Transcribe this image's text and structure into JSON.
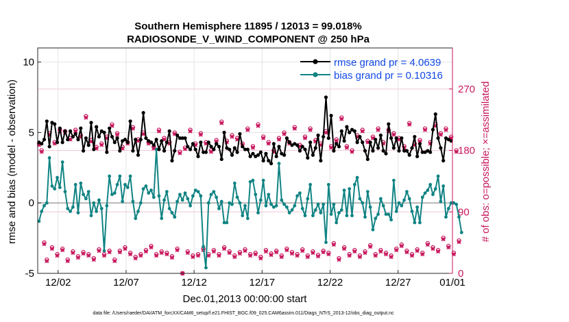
{
  "chart_data": {
    "type": "line",
    "title_line1": "Southern Hemisphere 11895 / 12013 = 99.018%",
    "title_line2": "RADIOSONDE_V_WIND_COMPONENT @ 250 hPa",
    "xlabel": "Dec.01,2013 00:00:00 start",
    "ylabel": "rmse and bias (model - observation)",
    "ylabel_right": "# of obs: o=possible; ×=assimilated",
    "xlim": [
      0.5,
      31
    ],
    "ylim": [
      -5,
      11
    ],
    "ylim_right": [
      0,
      330
    ],
    "x_tick_values": [
      2,
      7,
      12,
      17,
      22,
      27,
      31
    ],
    "x_tick_labels": [
      "12/02",
      "12/07",
      "12/12",
      "12/17",
      "12/22",
      "12/27",
      "01/01"
    ],
    "y_tick_values": [
      -5,
      0,
      5,
      10
    ],
    "y_tick_labels": [
      "-5",
      "0",
      "5",
      "10"
    ],
    "y_right_tick_values": [
      0,
      90,
      180,
      270
    ],
    "y_right_tick_labels": [
      "0",
      "90",
      "180",
      "270"
    ],
    "legend": {
      "position": "top-right",
      "entries": [
        "rmse grand pr = 4.0639",
        "bias grand pr = 0.10316"
      ]
    },
    "series": [
      {
        "name": "rmse",
        "color": "#000000",
        "axis": "left",
        "values": [
          4.3,
          4.2,
          4.5,
          5.8,
          4.0,
          5.7,
          5.6,
          4.3,
          5.3,
          4.3,
          5.1,
          4.5,
          5.1,
          4.7,
          4.9,
          4.5,
          5.3,
          3.7,
          4.6,
          4.1,
          5.7,
          3.8,
          5.4,
          4.7,
          5.1,
          5.0,
          3.6,
          5.3,
          4.7,
          4.3,
          4.6,
          3.7,
          4.4,
          4.5,
          4.3,
          5.8,
          3.7,
          4.5,
          3.4,
          4.5,
          6.4,
          4.6,
          4.4,
          4.3,
          4.1,
          4.5,
          3.8,
          4.4,
          3.7,
          4.3,
          5.1,
          3.0,
          3.7,
          4.8,
          4.6,
          4.6,
          4.6,
          4.0,
          3.8,
          4.2,
          3.8,
          3.3,
          4.3,
          3.6,
          3.6,
          4.3,
          4.0,
          3.8,
          4.2,
          4.0,
          3.1,
          5.0,
          3.9,
          3.8,
          3.4,
          3.9,
          3.6,
          4.9,
          4.0,
          3.8,
          3.8,
          3.3,
          3.5,
          3.3,
          3.4,
          3.6,
          3.0,
          3.5,
          3.0,
          2.8,
          4.2,
          3.3,
          4.0,
          3.5,
          3.4,
          4.6,
          4.3,
          4.1,
          4.2,
          4.1,
          3.7,
          4.0,
          3.8,
          3.2,
          4.3,
          3.4,
          3.9,
          4.8,
          3.0,
          4.7,
          7.5,
          4.6,
          6.2,
          3.7,
          4.2,
          4.0,
          5.1,
          4.4,
          5.4,
          5.0,
          5.2,
          5.1,
          4.3,
          4.7,
          4.3,
          3.7,
          3.1,
          4.3,
          3.7,
          4.5,
          3.9,
          4.8,
          3.7,
          3.5,
          5.6,
          4.6,
          3.9,
          4.6,
          3.7,
          4.6,
          3.7,
          3.7,
          3.4,
          3.9,
          4.7,
          3.3,
          4.2,
          3.6,
          3.6,
          3.7,
          3.6,
          5.2,
          6.3,
          4.6,
          3.9,
          3.0,
          4.6,
          4.5,
          4.4
        ]
      },
      {
        "name": "bias",
        "color": "#108383",
        "axis": "left",
        "values": [
          -1.3,
          -0.6,
          -0.2,
          0.0,
          3.2,
          1.2,
          1.0,
          1.8,
          1.1,
          2.9,
          0.8,
          -0.4,
          -0.6,
          -0.3,
          1.3,
          -0.7,
          1.4,
          0.6,
          0.3,
          0.8,
          -0.9,
          0.0,
          -0.6,
          0.2,
          -0.4,
          -3.4,
          -0.2,
          1.9,
          0.6,
          0.7,
          1.3,
          1.9,
          0.1,
          1.3,
          1.1,
          1.9,
          0.1,
          -1.1,
          -0.6,
          0.0,
          1.0,
          1.2,
          0.7,
          0.9,
          0.4,
          3.8,
          0.5,
          -1.1,
          0.2,
          0.8,
          -0.4,
          -0.7,
          -1.0,
          0.1,
          0.6,
          0.2,
          0.7,
          0.3,
          -0.2,
          0.5,
          0.9,
          0.8,
          0.5,
          -3.1,
          -4.6,
          0.0,
          0.6,
          0.8,
          0.4,
          -0.4,
          0.1,
          -1.4,
          -1.4,
          0.0,
          -0.1,
          1.4,
          0.4,
          0.0,
          -0.9,
          -0.2,
          -1.1,
          1.5,
          1.6,
          0.6,
          -0.7,
          0.2,
          1.6,
          -0.2,
          0.6,
          -0.1,
          -0.3,
          -0.2,
          2.8,
          0.2,
          -0.1,
          -0.3,
          -0.7,
          -0.5,
          -0.2,
          0.5,
          0.7,
          -0.4,
          -0.9,
          0.3,
          1.3,
          -0.9,
          -0.5,
          -0.1,
          -0.7,
          -0.1,
          -2.8,
          1.3,
          -0.8,
          -0.1,
          -1.4,
          -0.7,
          -0.5,
          0.9,
          -0.9,
          1.0,
          -0.9,
          1.3,
          1.8,
          0.3,
          0.0,
          -1.0,
          0.8,
          -0.3,
          -1.9,
          -1.1,
          -0.8,
          0.3,
          -0.2,
          -0.8,
          -0.8,
          -1.2,
          1.6,
          -0.6,
          0.0,
          -0.2,
          0.2,
          0.8,
          0.3,
          -0.6,
          -1.4,
          -0.3,
          -1.4,
          0.4,
          0.7,
          0.9,
          1.3,
          0.6,
          1.0,
          1.9,
          0.1,
          1.2,
          -1.0,
          -0.4,
          0.0,
          0.0,
          -0.1,
          -1.0,
          -2.1
        ]
      },
      {
        "name": "obs possible",
        "color": "#c8175d",
        "axis": "right",
        "marker": "o",
        "values": [
          190,
          180,
          45,
          20,
          205,
          38,
          192,
          28,
          210,
          36,
          208,
          20,
          198,
          32,
          210,
          25,
          202,
          31,
          230,
          28,
          195,
          22,
          185,
          35,
          190,
          28,
          200,
          33,
          218,
          20,
          205,
          33,
          185,
          38,
          192,
          30,
          214,
          24,
          196,
          28,
          206,
          34,
          192,
          40,
          185,
          28,
          210,
          32,
          198,
          30,
          192,
          25,
          206,
          36,
          178,
          0,
          184,
          32,
          210,
          26,
          190,
          28,
          205,
          36,
          192,
          28,
          180,
          34,
          195,
          28,
          222,
          38,
          194,
          32,
          202,
          26,
          198,
          31,
          190,
          35,
          212,
          28,
          186,
          30,
          218,
          24,
          200,
          34,
          192,
          29,
          180,
          33,
          198,
          26,
          206,
          36,
          192,
          31,
          214,
          28,
          188,
          35,
          200,
          26,
          212,
          32,
          195,
          27,
          190,
          33,
          208,
          30,
          186,
          44,
          196,
          22,
          228,
          38,
          186,
          28,
          180,
          34,
          202,
          26,
          210,
          32,
          194,
          41,
          200,
          28,
          212,
          34,
          192,
          30,
          210,
          26,
          205,
          36,
          198,
          42,
          186,
          33,
          220,
          28,
          190,
          35,
          195,
          30,
          212,
          44,
          192,
          38,
          218,
          34,
          205,
          52,
          212,
          40,
          200,
          30,
          180,
          48
        ]
      },
      {
        "name": "obs assimilated",
        "color": "#c8175d",
        "axis": "right",
        "marker": "x",
        "values": [
          188,
          178,
          43,
          18,
          203,
          36,
          190,
          26,
          208,
          34,
          206,
          18,
          196,
          30,
          208,
          23,
          200,
          29,
          228,
          26,
          193,
          20,
          183,
          33,
          188,
          26,
          198,
          31,
          216,
          18,
          203,
          31,
          183,
          36,
          190,
          28,
          212,
          22,
          194,
          26,
          204,
          32,
          190,
          38,
          183,
          26,
          208,
          30,
          196,
          28,
          190,
          23,
          204,
          34,
          176,
          0,
          182,
          30,
          208,
          24,
          188,
          26,
          203,
          34,
          190,
          26,
          178,
          32,
          193,
          26,
          220,
          36,
          192,
          30,
          200,
          24,
          196,
          29,
          188,
          33,
          210,
          26,
          184,
          28,
          216,
          22,
          198,
          32,
          190,
          27,
          178,
          31,
          196,
          24,
          204,
          34,
          190,
          29,
          212,
          26,
          186,
          33,
          198,
          24,
          210,
          30,
          193,
          25,
          188,
          31,
          206,
          28,
          184,
          42,
          194,
          20,
          226,
          36,
          184,
          26,
          178,
          32,
          200,
          24,
          208,
          30,
          192,
          39,
          198,
          26,
          210,
          32,
          190,
          28,
          208,
          24,
          203,
          34,
          196,
          40,
          184,
          31,
          218,
          26,
          188,
          33,
          193,
          28,
          210,
          42,
          190,
          36,
          216,
          32,
          203,
          50,
          210,
          38,
          198,
          28,
          178,
          46
        ]
      }
    ]
  },
  "footer_text": "data file: /Users/raeder/DAI/ATM_forcXX/CAM6_setup/f.e21.FHIST_BGC.f09_025.CAM6assim.011/Diags_NTrS_2013-12/obs_diag_output.nc"
}
